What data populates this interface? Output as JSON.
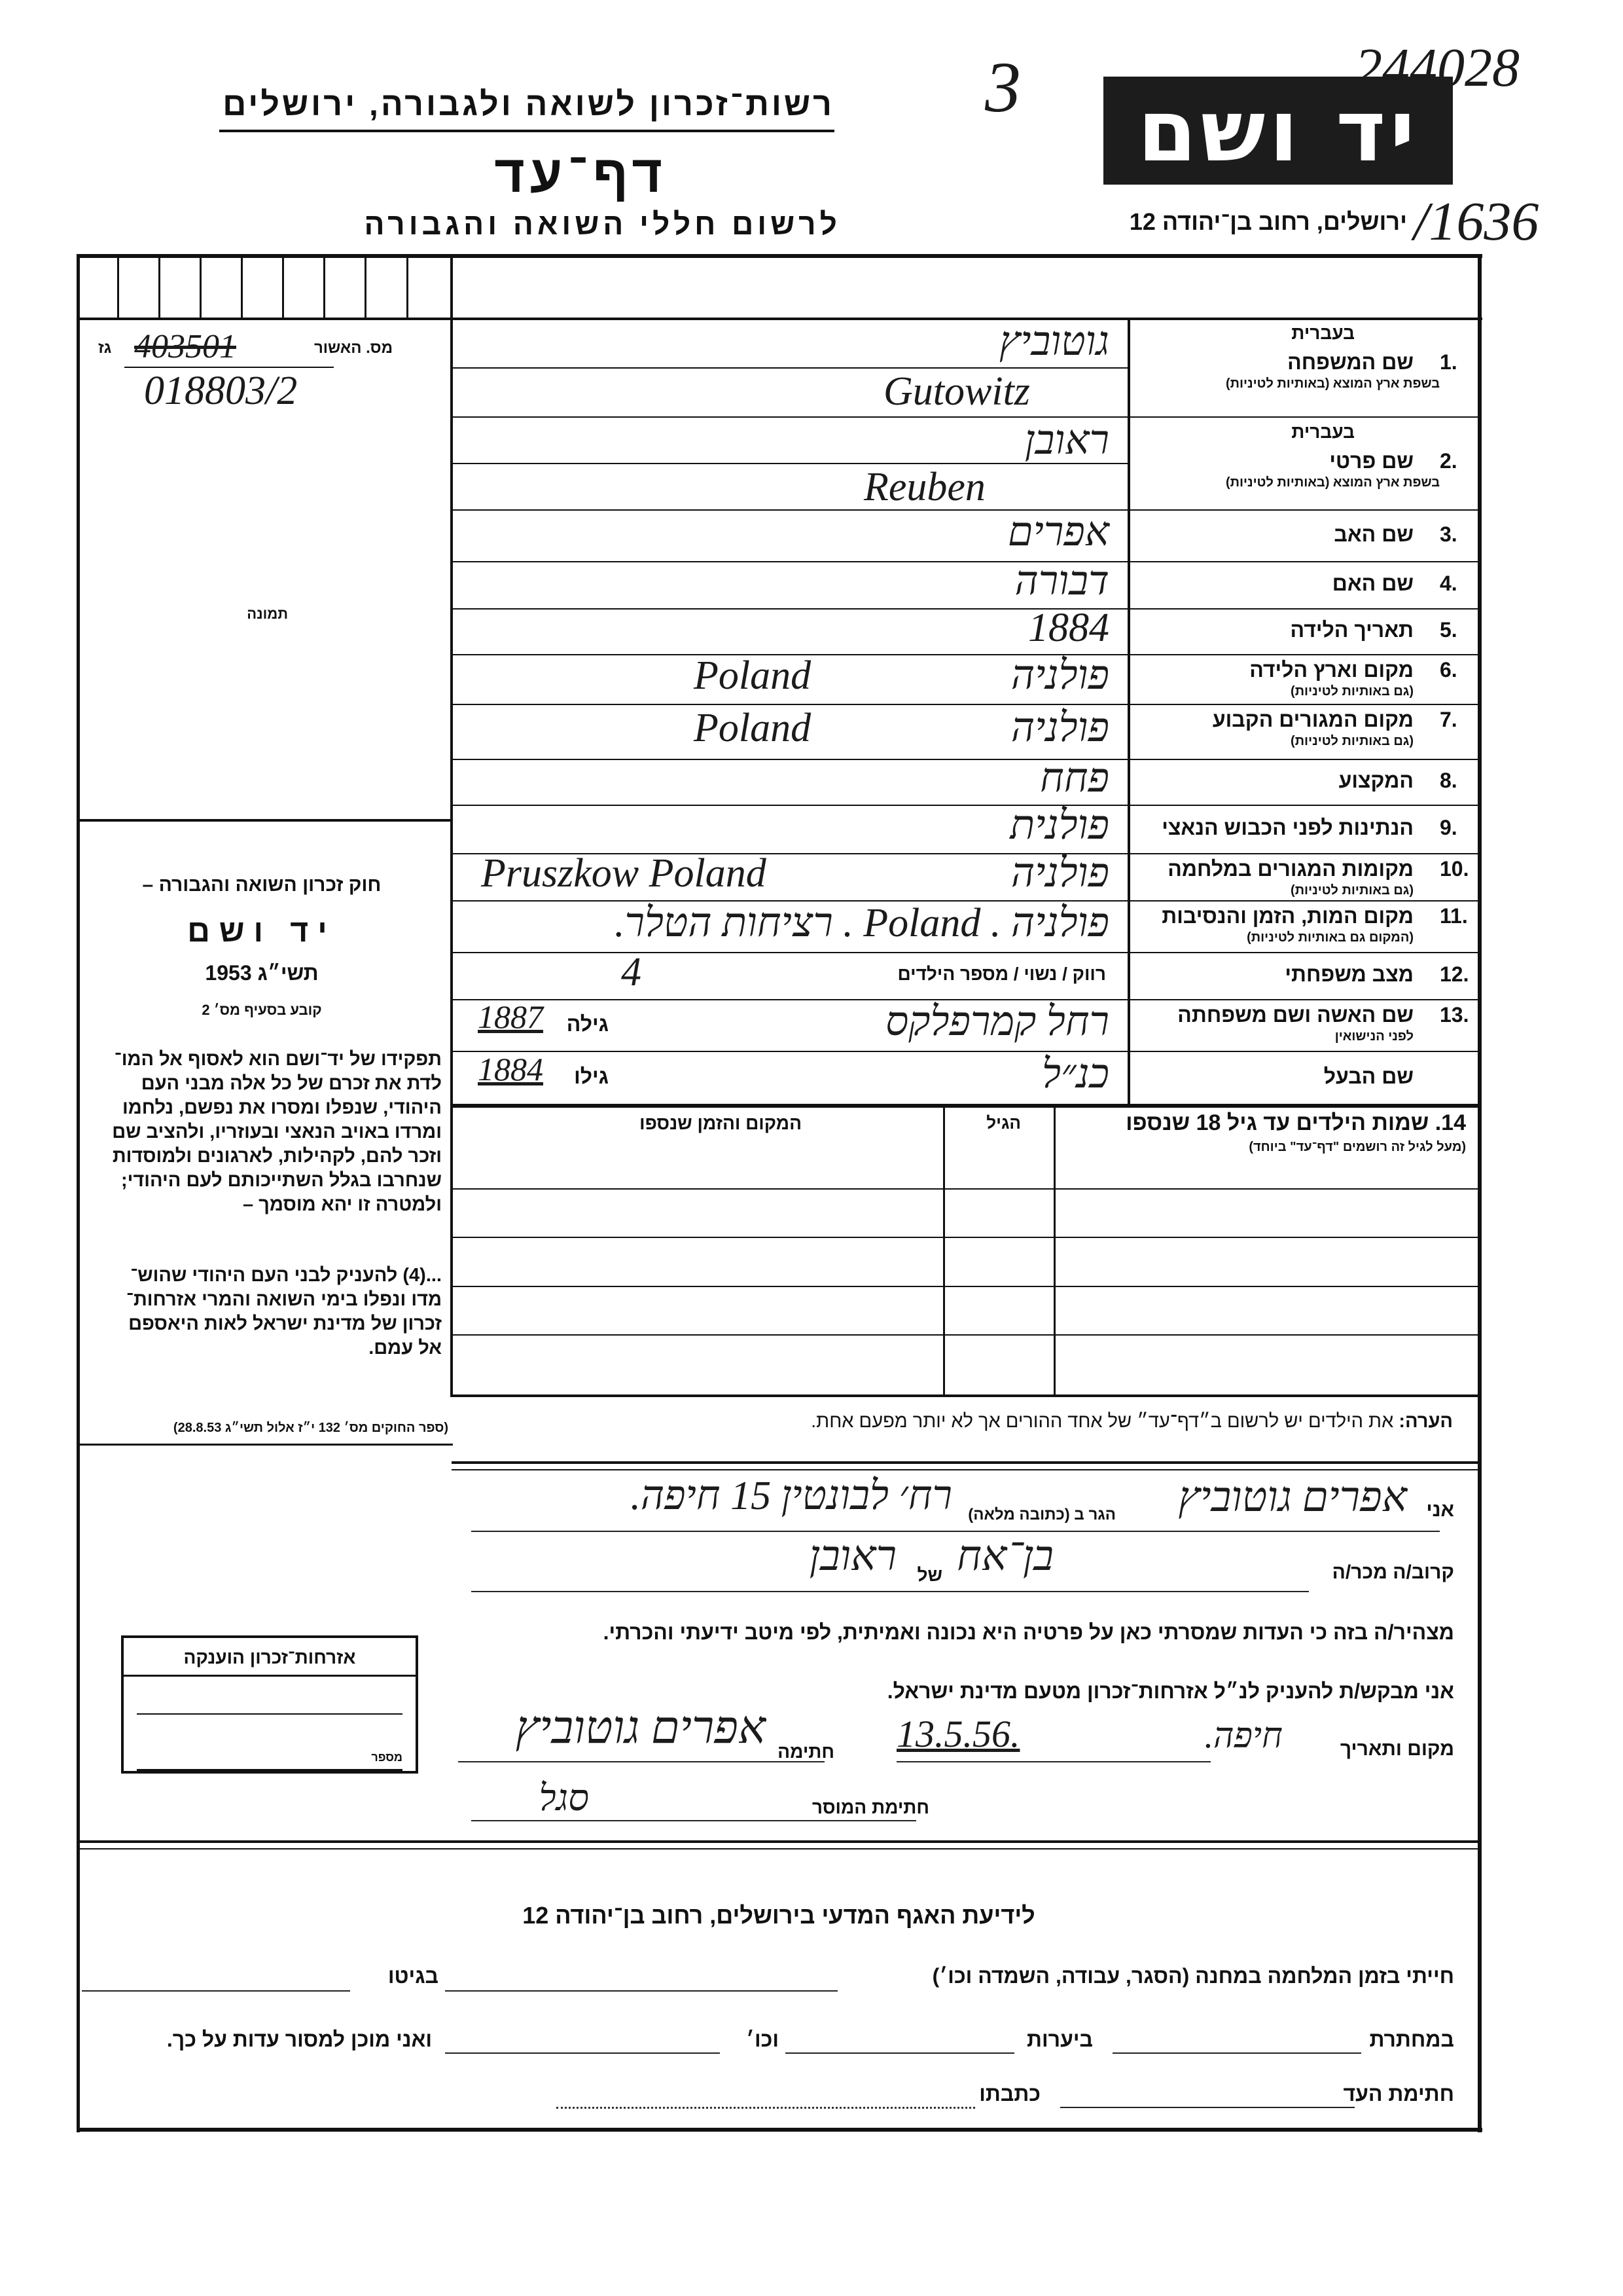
{
  "header": {
    "archive_number": "244028",
    "file_number": "/1636",
    "margin_mark": "3",
    "organization": "רשות־זכרון לשואה ולגבורה, ירושלים",
    "form_title": "דף־עד",
    "form_subtitle": "לרשום חללי השואה והגבורה",
    "logo_text": "יד ושם",
    "address": "ירושלים, רחוב בן־יהודה 12"
  },
  "certificate": {
    "label": "מס. האשור",
    "suffix": "גז",
    "old_value": "403501",
    "value": "018803/2"
  },
  "photo_label": "תמונה",
  "law": {
    "title": "חוק זכרון השואה והגבורה –",
    "name": "יד ושם",
    "year": "תשי״ג 1953",
    "clause": "קובע בסעיף מס׳ 2",
    "paragraph1": [
      "תפקידו של יד־ושם הוא לאסוף אל המו־",
      "לדת את זכרם של כל אלה מבני העם",
      "היהודי, שנפלו ומסרו את נפשם, נלחמו",
      "ומרדו באויב הנאצי ובעוזריו, ולהציב שם",
      "וזכר להם, לקהילות, לארגונים ולמוסדות",
      "שנחרבו בגלל השתייכותם לעם היהודי;",
      "ולמטרה זו יהא מוסמך –"
    ],
    "paragraph2": [
      "...(4) להעניק לבני העם היהודי שהוש־",
      "מדו ונפלו בימי השואה והמרי אזרחות־",
      "זכרון של מדינת ישראל לאות היאספם",
      "אל עמם."
    ],
    "citation": "(ספר החוקים מס׳ 132 י״ז אלול תשי״ג 28.8.53)"
  },
  "hebrew_marker": "בעברית",
  "fields": [
    {
      "num": "1.",
      "label": "שם המשפחה",
      "sublabel": "בשפת ארץ המוצא (באותיות לטיניות)",
      "value_he": "גוטוביץ",
      "value_lat": "Gutowitz"
    },
    {
      "num": "2.",
      "label": "שם פרטי",
      "sublabel": "בשפת ארץ המוצא (באותיות לטיניות)",
      "value_he": "ראובן",
      "value_lat": "Reuben"
    },
    {
      "num": "3.",
      "label": "שם האב",
      "value_he": "אפרים"
    },
    {
      "num": "4.",
      "label": "שם האם",
      "value_he": "דבורה"
    },
    {
      "num": "5.",
      "label": "תאריך הלידה",
      "value_he": "1884"
    },
    {
      "num": "6.",
      "label": "מקום וארץ הלידה",
      "sublabel": "(גם באותיות לטיניות)",
      "value_he": "פולניה",
      "value_lat": "Poland"
    },
    {
      "num": "7.",
      "label": "מקום המגורים הקבוע",
      "sublabel": "(גם באותיות לטיניות)",
      "value_he": "פולניה",
      "value_lat": "Poland"
    },
    {
      "num": "8.",
      "label": "המקצוע",
      "value_he": "פחח"
    },
    {
      "num": "9.",
      "label": "הנתינות לפני הכבוש הנאצי",
      "value_he": "פולנית"
    },
    {
      "num": "10.",
      "label": "מקומות המגורים במלחמה",
      "sublabel": "(גם באותיות לטיניות)",
      "value_he": "פולניה",
      "value_lat": "Pruszkow Poland"
    },
    {
      "num": "11.",
      "label": "מקום המות, הזמן והנסיבות",
      "sublabel": "(המקום גם באותיות לטיניות)",
      "value_he": "פולניה . Poland . רציחות הטלר."
    },
    {
      "num": "12.",
      "label": "מצב משפחתי",
      "printed": "רווק / נשוי / מספר הילדים",
      "value_he": "4"
    },
    {
      "num": "13.",
      "label": "שם האשה ושם משפחתה",
      "sublabel": "לפני הנישואין",
      "value_he": "רחל קמרפלקס",
      "age_label": "גילה",
      "age": "1887"
    },
    {
      "num": "",
      "label": "שם הבעל",
      "value_he": "כנ״ל",
      "age_label": "גילו",
      "age": "1884"
    }
  ],
  "children": {
    "num": "14.",
    "label": "שמות הילדים עד גיל 18 שנספו",
    "sublabel": "(מעל לגיל זה רושמים \"דף־עד\" ביוחד)",
    "col_age": "הגיל",
    "col_place": "המקום והזמן שנספו"
  },
  "note": {
    "label": "הערה:",
    "text": "את הילדים יש לרשום ב״דף־עד״ של אחד ההורים אך לא יותר מפעם אחת."
  },
  "declaration": {
    "i_label": "אני",
    "name": "אפרים גוטוביץ",
    "lives_label": "הגר ב (כתובה מלאה)",
    "address": "רח׳ לבונטין 15 חיפה.",
    "relation_label": "קרוב/ה מכר/ה",
    "relation": "בן־אח",
    "of_label": "של",
    "relation_of": "ראובן",
    "statement": "מצהיר/ה בזה כי העדות שמסרתי כאן על פרטיה היא נכונה ואמיתית, לפי מיטב ידיעתי והכרתי.",
    "request": "אני מבקש/ת להעניק לנ״ל אזרחות־זכרון מטעם מדינת ישראל.",
    "place_date_label": "מקום ותאריך",
    "place": "חיפה.",
    "date": "13.5.56.",
    "signature_label": "חתימה",
    "signature": "אפרים גוטוביץ",
    "recorder_label": "חתימת המוסר",
    "recorder_signature": "סגל"
  },
  "citizenship_box": {
    "title": "אזרחות־זכרון הוענקה",
    "number_label": "מספר"
  },
  "witness": {
    "title": "לידיעת האגף המדעי בירושלים, רחוב בן־יהודה 12",
    "line1_a": "חייתי בזמן המלחמה במחנה (הסגר, עבודה, השמדה וכו׳)",
    "line1_b": "בגיטו",
    "line2_a": "במחתרת",
    "line2_b": "ביערות",
    "line2_c": "וכו׳",
    "line2_d": "ואני מוכן למסור עדות על כך.",
    "line3_a": "חתימת העד",
    "line3_b": "כתבתו"
  }
}
